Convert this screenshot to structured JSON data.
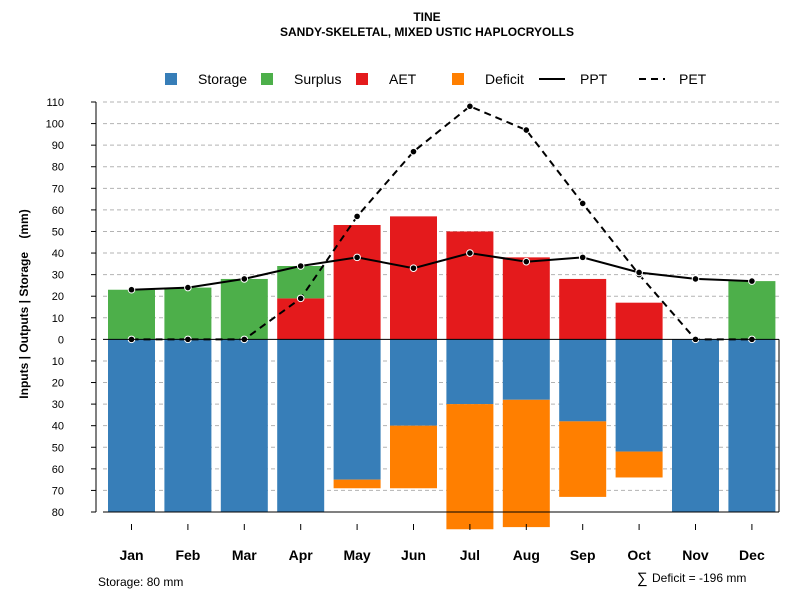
{
  "chart_data": {
    "type": "bar",
    "title": "TINE",
    "subtitle": "SANDY-SKELETAL, MIXED USTIC HAPLOCRYOLLS",
    "ylabel": "Inputs | Outputs | Storage    (mm)",
    "categories": [
      "Jan",
      "Feb",
      "Mar",
      "Apr",
      "May",
      "Jun",
      "Jul",
      "Aug",
      "Sep",
      "Oct",
      "Nov",
      "Dec"
    ],
    "ylim": [
      -80,
      110
    ],
    "yticks": [
      {
        "v": 110,
        "label": "110"
      },
      {
        "v": 100,
        "label": "100"
      },
      {
        "v": 90,
        "label": "90"
      },
      {
        "v": 80,
        "label": "80"
      },
      {
        "v": 70,
        "label": "70"
      },
      {
        "v": 60,
        "label": "60"
      },
      {
        "v": 50,
        "label": "50"
      },
      {
        "v": 40,
        "label": "40"
      },
      {
        "v": 30,
        "label": "30"
      },
      {
        "v": 20,
        "label": "20"
      },
      {
        "v": 10,
        "label": "10"
      },
      {
        "v": 0,
        "label": "0"
      },
      {
        "v": -10,
        "label": "10"
      },
      {
        "v": -20,
        "label": "20"
      },
      {
        "v": -30,
        "label": "30"
      },
      {
        "v": -40,
        "label": "40"
      },
      {
        "v": -50,
        "label": "50"
      },
      {
        "v": -60,
        "label": "60"
      },
      {
        "v": -70,
        "label": "70"
      },
      {
        "v": -80,
        "label": "80"
      }
    ],
    "gridlines": true,
    "legend_position": "top",
    "legend": [
      {
        "name": "Storage",
        "kind": "box",
        "color": "#377EB8"
      },
      {
        "name": "Surplus",
        "kind": "box",
        "color": "#4DAF4A"
      },
      {
        "name": "AET",
        "kind": "box",
        "color": "#E41A1C"
      },
      {
        "name": "Deficit",
        "kind": "box",
        "color": "#FF7F00"
      },
      {
        "name": "PPT",
        "kind": "solid",
        "color": "#000000"
      },
      {
        "name": "PET",
        "kind": "dashed",
        "color": "#000000"
      }
    ],
    "series": [
      {
        "name": "Storage",
        "color": "#377EB8",
        "values": [
          80,
          80,
          80,
          80,
          65,
          40,
          30,
          28,
          38,
          52,
          80,
          80
        ]
      },
      {
        "name": "Surplus",
        "color": "#4DAF4A",
        "values": [
          23,
          24,
          28,
          15,
          0,
          0,
          0,
          0,
          0,
          0,
          0,
          27
        ]
      },
      {
        "name": "AET",
        "color": "#E41A1C",
        "values": [
          0,
          0,
          0,
          19,
          53,
          57,
          50,
          38,
          28,
          17,
          0,
          0
        ]
      },
      {
        "name": "Deficit",
        "color": "#FF7F00",
        "values": [
          0,
          0,
          0,
          0,
          4,
          29,
          58,
          59,
          35,
          12,
          0,
          0
        ]
      },
      {
        "name": "PPT",
        "color": "#000000",
        "style": "solid",
        "values": [
          23,
          24,
          28,
          34,
          38,
          33,
          40,
          36,
          38,
          31,
          28,
          27
        ]
      },
      {
        "name": "PET",
        "color": "#000000",
        "style": "dashed",
        "values": [
          0,
          0,
          0,
          19,
          57,
          87,
          108,
          97,
          63,
          30,
          0,
          0
        ]
      }
    ],
    "annotations": {
      "storage_note": "Storage: 80 mm",
      "deficit_symbol": "∑",
      "deficit_note": "Deficit = -196 mm"
    }
  }
}
